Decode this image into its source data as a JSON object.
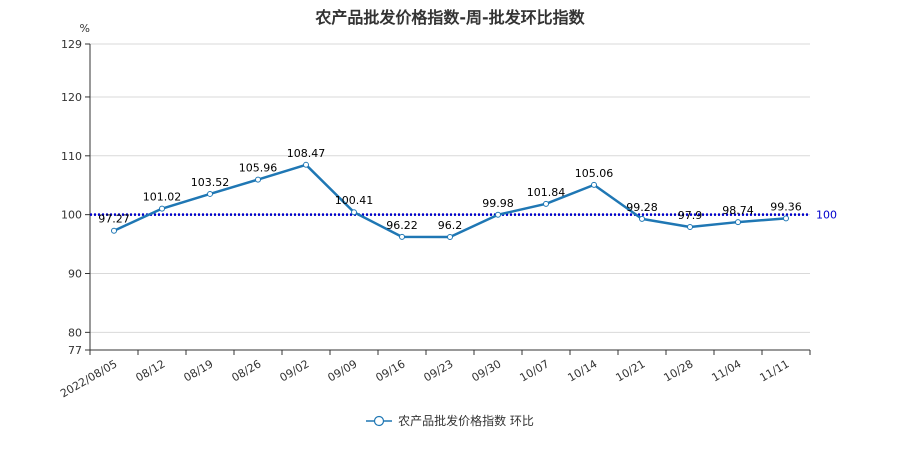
{
  "chart_data": {
    "type": "line",
    "title": "农产品批发价格指数-周-批发环比指数",
    "y_unit": "%",
    "ylim": [
      77,
      129
    ],
    "y_ticks": [
      77,
      80,
      90,
      100,
      110,
      120,
      129
    ],
    "grid": true,
    "categories": [
      "2022/08/05",
      "08/12",
      "08/19",
      "08/26",
      "09/02",
      "09/09",
      "09/16",
      "09/23",
      "09/30",
      "10/07",
      "10/14",
      "10/21",
      "10/28",
      "11/04",
      "11/11"
    ],
    "series": [
      {
        "name": "农产品批发价格指数 环比",
        "color": "#1f77b4",
        "values": [
          97.27,
          101.02,
          103.52,
          105.96,
          108.47,
          100.41,
          96.22,
          96.2,
          99.98,
          101.84,
          105.06,
          99.28,
          97.9,
          98.74,
          99.36
        ]
      }
    ],
    "reference_line": {
      "value": 100,
      "label": "100",
      "color": "#0000cc"
    },
    "legend_position": "bottom-center"
  }
}
